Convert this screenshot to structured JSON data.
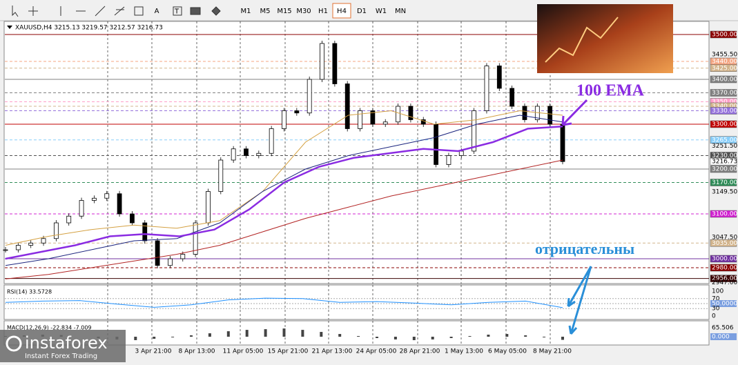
{
  "toolbar": {
    "text_tool": "A",
    "periods": [
      "M1",
      "M5",
      "M15",
      "M30",
      "H1",
      "H4",
      "D1",
      "W1",
      "MN"
    ],
    "active": 5
  },
  "chart": {
    "header": "XAUUSD,H4  3215.13 3219.57 3212.57 3216.73",
    "price_labels": [
      {
        "value": 3500,
        "label": "3500.00",
        "bg": "#8b0000",
        "fg": "#fff",
        "line": "solid"
      },
      {
        "value": 3455.5,
        "label": "3455.50"
      },
      {
        "value": 3440,
        "label": "3440.00",
        "bg": "#f4a582",
        "fg": "#fff",
        "line": "dashed"
      },
      {
        "value": 3425,
        "label": "3425.00",
        "bg": "#d2b48c",
        "fg": "#fff",
        "line": "dashed"
      },
      {
        "value": 3400,
        "label": "3400.00",
        "bg": "#808080",
        "fg": "#fff",
        "line": "solid"
      },
      {
        "value": 3370,
        "label": "3370.00",
        "bg": "#808080",
        "fg": "#fff",
        "line": "dashed"
      },
      {
        "value": 3350,
        "label": "3350.00",
        "bg": "#ff9ec8",
        "fg": "#fff",
        "line": "dashed"
      },
      {
        "value": 3340,
        "label": "3340.00",
        "bg": "#d2b48c",
        "fg": "#fff",
        "line": "dashed"
      },
      {
        "value": 3330,
        "label": "3330.00",
        "bg": "#9370db",
        "fg": "#fff",
        "line": "dashed"
      },
      {
        "value": 3300,
        "label": "3300.00",
        "bg": "#c00000",
        "fg": "#fff",
        "line": "solid"
      },
      {
        "value": 3265,
        "label": "3265.00",
        "bg": "#87cefa",
        "fg": "#fff",
        "line": "dashed"
      },
      {
        "value": 3251.5,
        "label": "3251.50"
      },
      {
        "value": 3230,
        "label": "3230.00",
        "bg": "#505050",
        "fg": "#fff",
        "line": "dashed"
      },
      {
        "value": 3216.73,
        "label": "3216.73",
        "bg": "#ffffff",
        "fg": "#000"
      },
      {
        "value": 3200,
        "label": "3200.00",
        "bg": "#808080",
        "fg": "#fff",
        "line": "solid"
      },
      {
        "value": 3170,
        "label": "3170.00",
        "bg": "#2e8b57",
        "fg": "#fff",
        "line": "dashed"
      },
      {
        "value": 3149.5,
        "label": "3149.50"
      },
      {
        "value": 3100,
        "label": "3100.00",
        "bg": "#d020d0",
        "fg": "#fff",
        "line": "dashed"
      },
      {
        "value": 3047.5,
        "label": "3047.50"
      },
      {
        "value": 3035,
        "label": "3035.00",
        "bg": "#d2b48c",
        "fg": "#fff",
        "line": "dashed"
      },
      {
        "value": 3000,
        "label": "3000.00",
        "bg": "#7030a0",
        "fg": "#fff",
        "line": "solid"
      },
      {
        "value": 2980,
        "label": "2980.00",
        "bg": "#8b0000",
        "fg": "#fff",
        "line": "dashed"
      },
      {
        "value": 2956,
        "label": "2956.00",
        "bg": "#3a0000",
        "fg": "#fff",
        "line": "solid"
      },
      {
        "value": 2947,
        "label": "2947.00"
      }
    ],
    "time_labels": [
      "3 Apr 21:00",
      "8 Apr 13:00",
      "11 Apr 05:00",
      "15 Apr 21:00",
      "21 Apr 13:00",
      "24 Apr 05:00",
      "28 Apr 21:00",
      "1 May 13:00",
      "6 May 05:00",
      "8 May 21:00"
    ],
    "close": [
      3020,
      3030,
      3035,
      3045,
      3080,
      3095,
      3130,
      3135,
      3145,
      3100,
      3080,
      3040,
      2985,
      3000,
      3010,
      3080,
      3150,
      3220,
      3245,
      3230,
      3235,
      3290,
      3330,
      3325,
      3400,
      3480,
      3390,
      3290,
      3330,
      3300,
      3305,
      3340,
      3310,
      3300,
      3210,
      3230,
      3240,
      3330,
      3430,
      3380,
      3340,
      3310,
      3340,
      3300,
      3216.73
    ],
    "ema100": [
      3000,
      3015,
      3030,
      3050,
      3055,
      3050,
      3065,
      3110,
      3170,
      3205,
      3225,
      3235,
      3245,
      3240,
      3260,
      3290,
      3295
    ],
    "ma_orange": [
      3030,
      3050,
      3065,
      3075,
      3068,
      3085,
      3150,
      3260,
      3320,
      3330,
      3300,
      3310,
      3330,
      3320
    ],
    "ma_blue": [
      2985,
      3000,
      3020,
      3040,
      3045,
      3080,
      3150,
      3200,
      3230,
      3250,
      3270,
      3300,
      3320,
      3305
    ],
    "ma_red": [
      2955,
      2965,
      2980,
      2995,
      3010,
      3030,
      3060,
      3090,
      3115,
      3140,
      3160,
      3180,
      3200,
      3220
    ],
    "annotations": {
      "ema": "100 EMA",
      "negative": "отрицательны"
    }
  },
  "rsi": {
    "header": "RSI(14) 33.5728",
    "ticks": [
      {
        "value": 100,
        "label": "100"
      },
      {
        "value": 70,
        "label": "70"
      },
      {
        "value": 50,
        "label": "50.0000",
        "bg": "#7b9fe0"
      },
      {
        "value": 30,
        "label": "30"
      },
      {
        "value": 0,
        "label": "0"
      }
    ],
    "values": [
      55,
      60,
      62,
      48,
      35,
      45,
      65,
      72,
      70,
      55,
      58,
      52,
      45,
      55,
      60,
      33.5728
    ]
  },
  "macd": {
    "header": "MACD(12,26,9) -22.834 -7.009",
    "ticks": [
      {
        "value": 65.506,
        "label": "65.506"
      },
      {
        "value": 0,
        "label": "0.000",
        "bg": "#7b9fe0"
      }
    ],
    "histogram": [
      5,
      10,
      15,
      12,
      0,
      -10,
      -20,
      -25,
      -15,
      -5,
      10,
      25,
      40,
      50,
      55,
      60,
      50,
      35,
      20,
      5,
      -10,
      -20,
      -25,
      -20,
      -10,
      5,
      15,
      20,
      10,
      -5,
      -22.834
    ]
  },
  "logo": {
    "name": "instaforex",
    "tagline": "Instant Forex Trading"
  }
}
